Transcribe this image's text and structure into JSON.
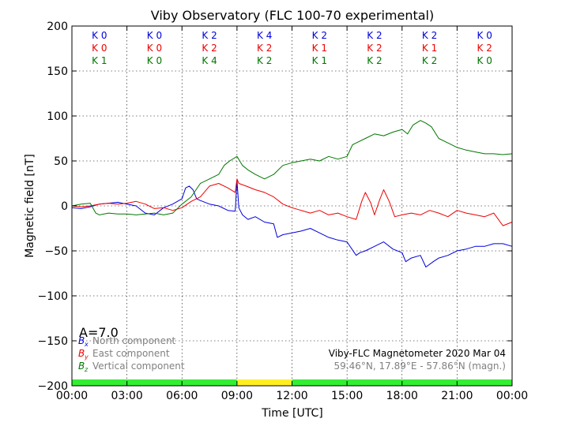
{
  "chart_data": {
    "type": "line",
    "title": "Viby Observatory (FLC 100-70 experimental)",
    "xlabel": "Time [UTC]",
    "ylabel": "Magnetic field [nT]",
    "xlim": [
      0,
      24
    ],
    "ylim": [
      -200,
      200
    ],
    "grid": true,
    "x_ticks": [
      0,
      3,
      6,
      9,
      12,
      15,
      18,
      21,
      24
    ],
    "x_tick_labels": [
      "00:00",
      "03:00",
      "06:00",
      "09:00",
      "12:00",
      "15:00",
      "18:00",
      "21:00",
      "00:00"
    ],
    "y_ticks": [
      -200,
      -150,
      -100,
      -50,
      0,
      50,
      100,
      150,
      200
    ],
    "y_tick_labels": [
      "−200",
      "−150",
      "−100",
      "−50",
      "0",
      "50",
      "100",
      "150",
      "200"
    ],
    "series": [
      {
        "name": "North component",
        "symbol": "B",
        "subscript": "x",
        "color": "#0000dd",
        "x": [
          0,
          0.5,
          1,
          1.5,
          2,
          2.5,
          3,
          3.5,
          4,
          4.5,
          5,
          5.5,
          6,
          6.2,
          6.4,
          6.6,
          6.8,
          7,
          7.5,
          8,
          8.5,
          8.9,
          9.0,
          9.1,
          9.3,
          9.6,
          10,
          10.5,
          11,
          11.2,
          11.5,
          12,
          12.5,
          13,
          13.5,
          14,
          14.5,
          15,
          15.5,
          15.7,
          16,
          16.5,
          17,
          17.5,
          18,
          18.2,
          18.5,
          19,
          19.3,
          19.7,
          20,
          20.5,
          21,
          21.5,
          22,
          22.5,
          23,
          23.5,
          24
        ],
        "y": [
          -2,
          -3,
          -1,
          2,
          3,
          4,
          2,
          0,
          -8,
          -10,
          -2,
          2,
          8,
          20,
          22,
          18,
          8,
          6,
          2,
          0,
          -5,
          -6,
          28,
          -2,
          -10,
          -15,
          -12,
          -18,
          -20,
          -35,
          -32,
          -30,
          -28,
          -25,
          -30,
          -35,
          -38,
          -40,
          -55,
          -52,
          -50,
          -45,
          -40,
          -48,
          -52,
          -62,
          -58,
          -55,
          -68,
          -62,
          -58,
          -55,
          -50,
          -48,
          -45,
          -45,
          -42,
          -42,
          -45
        ]
      },
      {
        "name": "East component",
        "symbol": "B",
        "subscript": "y",
        "color": "#ee0000",
        "x": [
          0,
          0.5,
          1,
          1.5,
          2,
          2.5,
          3,
          3.5,
          4,
          4.5,
          5,
          5.5,
          6,
          6.5,
          7,
          7.5,
          8,
          8.5,
          8.9,
          9.0,
          9.1,
          9.5,
          10,
          10.5,
          11,
          11.5,
          12,
          12.5,
          13,
          13.5,
          14,
          14.5,
          15,
          15.5,
          15.8,
          16,
          16.3,
          16.5,
          16.8,
          17,
          17.3,
          17.6,
          18,
          18.5,
          19,
          19.5,
          20,
          20.5,
          21,
          21.5,
          22,
          22.5,
          23,
          23.5,
          24
        ],
        "y": [
          0,
          -1,
          0,
          2,
          3,
          2,
          3,
          5,
          2,
          -3,
          -2,
          -5,
          -2,
          5,
          10,
          22,
          25,
          20,
          15,
          30,
          25,
          22,
          18,
          15,
          10,
          2,
          -2,
          -5,
          -8,
          -5,
          -10,
          -8,
          -12,
          -15,
          5,
          15,
          3,
          -10,
          8,
          18,
          5,
          -12,
          -10,
          -8,
          -10,
          -5,
          -8,
          -12,
          -5,
          -8,
          -10,
          -12,
          -8,
          -22,
          -18
        ]
      },
      {
        "name": "Vertical component",
        "symbol": "B",
        "subscript": "z",
        "color": "#007700",
        "x": [
          0,
          0.5,
          1,
          1.3,
          1.5,
          2,
          2.5,
          3,
          3.5,
          4,
          4.5,
          5,
          5.5,
          6,
          6.5,
          7,
          7.5,
          8,
          8.3,
          8.6,
          9,
          9.3,
          9.6,
          10,
          10.5,
          11,
          11.5,
          12,
          12.5,
          13,
          13.5,
          14,
          14.5,
          15,
          15.3,
          15.5,
          16,
          16.5,
          17,
          17.5,
          18,
          18.3,
          18.6,
          19,
          19.3,
          19.6,
          20,
          20.5,
          21,
          21.5,
          22,
          22.5,
          23,
          23.5,
          24
        ],
        "y": [
          0,
          2,
          3,
          -8,
          -10,
          -8,
          -9,
          -9,
          -10,
          -9,
          -8,
          -10,
          -8,
          2,
          10,
          25,
          30,
          35,
          45,
          50,
          55,
          45,
          40,
          35,
          30,
          35,
          45,
          48,
          50,
          52,
          50,
          55,
          52,
          55,
          68,
          70,
          75,
          80,
          78,
          82,
          85,
          80,
          90,
          95,
          92,
          88,
          75,
          70,
          65,
          62,
          60,
          58,
          58,
          57,
          58
        ]
      }
    ],
    "k_index": {
      "periods": [
        {
          "x": [
            "K 0",
            "K 0",
            "K 1"
          ]
        },
        {
          "x": [
            "K 0",
            "K 0",
            "K 0"
          ]
        },
        {
          "x": [
            "K 2",
            "K 2",
            "K 4"
          ]
        },
        {
          "x": [
            "K 4",
            "K 2",
            "K 2"
          ]
        },
        {
          "x": [
            "K 2",
            "K 1",
            "K 1"
          ]
        },
        {
          "x": [
            "K 2",
            "K 2",
            "K 2"
          ]
        },
        {
          "x": [
            "K 2",
            "K 1",
            "K 2"
          ]
        },
        {
          "x": [
            "K 0",
            "K 2",
            "K 0"
          ]
        }
      ]
    },
    "activity_bar": [
      {
        "from": 0,
        "to": 9,
        "color": "#33ee33"
      },
      {
        "from": 9,
        "to": 12,
        "color": "#ffee22"
      },
      {
        "from": 12,
        "to": 24,
        "color": "#33ee33"
      }
    ],
    "legend_location": "bottom-left",
    "a_index_label": "A=7.0",
    "station_info": "Viby-FLC Magnetometer 2020 Mar 04",
    "station_coords": "59.46°N, 17.89°E - 57.86°N (magn.)"
  }
}
